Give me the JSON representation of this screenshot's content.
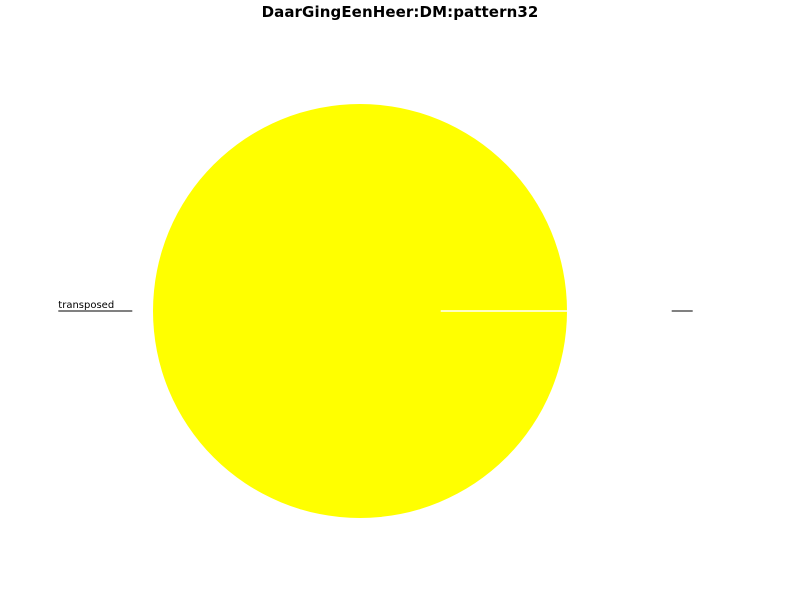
{
  "chart_data": {
    "type": "pie",
    "title": "DaarGingEenHeer:DM:pattern32",
    "slices": [
      {
        "label": "",
        "value": 0.0,
        "color": "#ffff00"
      },
      {
        "label": "transposed",
        "value": 100.0,
        "color": "#ffff00"
      }
    ],
    "start_angle_deg": 0,
    "direction": "counterclockwise",
    "wedge_edge_color": "#ffffff",
    "legend": "none",
    "grid": false
  }
}
